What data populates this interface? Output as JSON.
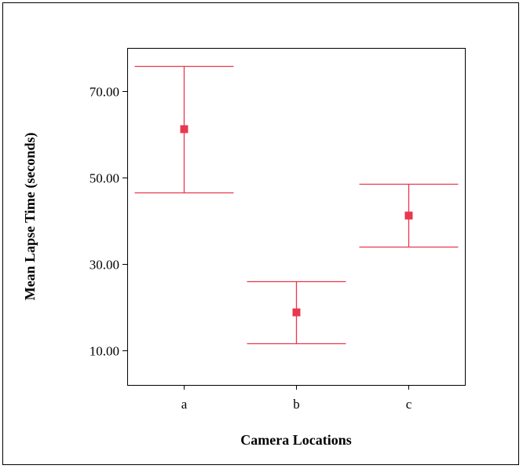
{
  "chart_data": {
    "type": "errorbar",
    "title": "",
    "xlabel": "Camera Locations",
    "ylabel": "Mean Lapse Time (seconds)",
    "categories": [
      "a",
      "b",
      "c"
    ],
    "series": [
      {
        "values": [
          61.2,
          18.8,
          41.2
        ],
        "lower": [
          46.6,
          11.7,
          34.0
        ],
        "upper": [
          75.8,
          26.0,
          48.5
        ]
      }
    ],
    "yticks": [
      "10.00",
      "30.00",
      "50.00",
      "70.00"
    ],
    "ylim": [
      2.0,
      80.0
    ],
    "grid": false,
    "colors": {
      "marker": "#e8384f",
      "whisker": "#e8384f",
      "axis": "#000000"
    }
  }
}
